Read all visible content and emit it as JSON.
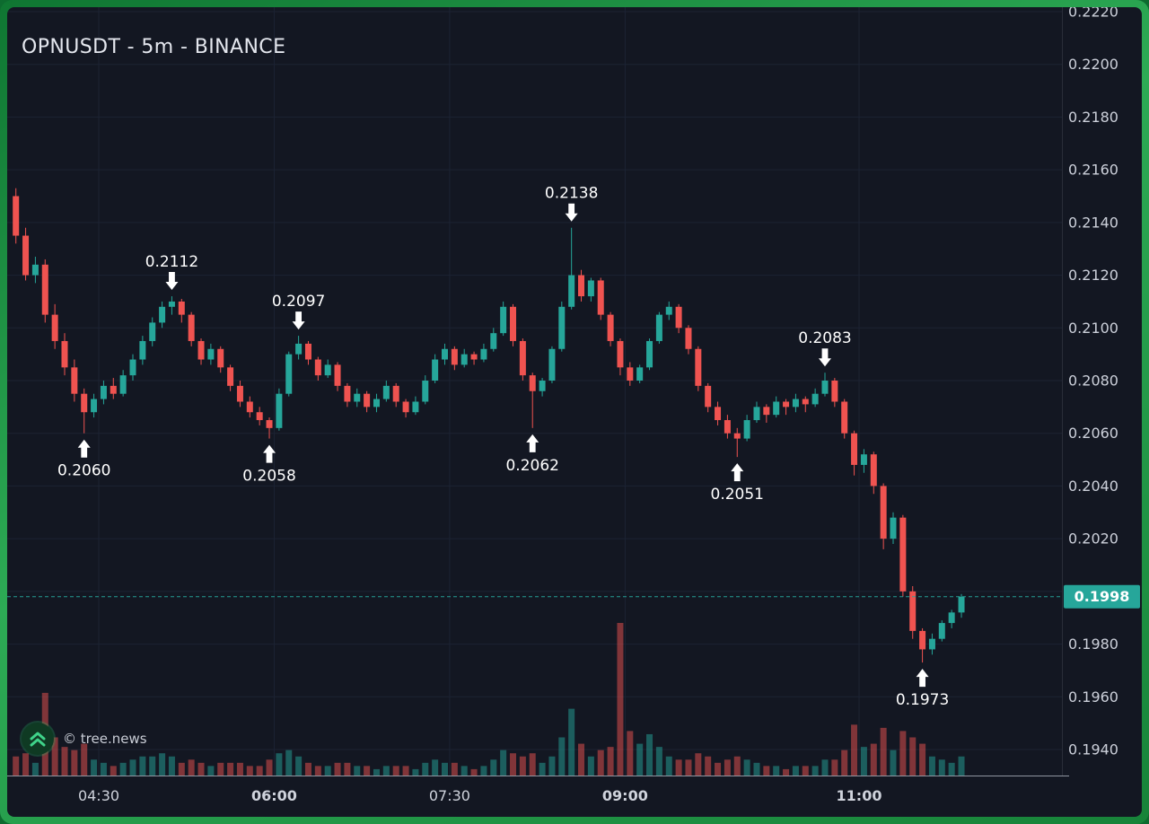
{
  "header": {
    "title": "OPNUSDT - 5m - BINANCE"
  },
  "watermark": {
    "label": "© tree.news",
    "icon": "double-chevron-up-icon"
  },
  "price_axis": {
    "ticks": [
      "0.2220",
      "0.2200",
      "0.2180",
      "0.2160",
      "0.2140",
      "0.2120",
      "0.2100",
      "0.2080",
      "0.2060",
      "0.2040",
      "0.2020",
      "0.1980",
      "0.1960",
      "0.1940"
    ],
    "last_price_label": "0.1998"
  },
  "time_axis": {
    "ticks": [
      {
        "label": "04:30",
        "bold": false
      },
      {
        "label": "06:00",
        "bold": true
      },
      {
        "label": "07:30",
        "bold": false
      },
      {
        "label": "09:00",
        "bold": true
      },
      {
        "label": "11:00",
        "bold": true
      }
    ]
  },
  "chart_data": {
    "type": "candlestick",
    "symbol": "OPNUSDT",
    "interval": "5m",
    "exchange": "BINANCE",
    "price_range": [
      0.194,
      0.222
    ],
    "price_step": 0.002,
    "last_price": 0.1998,
    "colors": {
      "up": "#26a69a",
      "down": "#ef5350",
      "accent": "#26a69a",
      "grid": "#1c2333"
    },
    "columns": [
      "time",
      "open",
      "high",
      "low",
      "close",
      "volume"
    ],
    "candles": [
      [
        "03:45",
        0.215,
        0.2153,
        0.2132,
        0.2135,
        6
      ],
      [
        "03:50",
        0.2135,
        0.2138,
        0.2118,
        0.212,
        7
      ],
      [
        "03:55",
        0.212,
        0.2127,
        0.2117,
        0.2124,
        4
      ],
      [
        "04:00",
        0.2124,
        0.2126,
        0.2102,
        0.2105,
        26
      ],
      [
        "04:05",
        0.2105,
        0.2109,
        0.2092,
        0.2095,
        12
      ],
      [
        "04:10",
        0.2095,
        0.2098,
        0.2082,
        0.2085,
        9
      ],
      [
        "04:15",
        0.2085,
        0.2088,
        0.2072,
        0.2075,
        8
      ],
      [
        "04:20",
        0.2075,
        0.2077,
        0.206,
        0.2068,
        10
      ],
      [
        "04:25",
        0.2068,
        0.2075,
        0.2066,
        0.2073,
        5
      ],
      [
        "04:30",
        0.2073,
        0.208,
        0.2071,
        0.2078,
        4
      ],
      [
        "04:35",
        0.2078,
        0.2081,
        0.2073,
        0.2075,
        3
      ],
      [
        "04:40",
        0.2075,
        0.2084,
        0.2074,
        0.2082,
        4
      ],
      [
        "04:45",
        0.2082,
        0.209,
        0.208,
        0.2088,
        5
      ],
      [
        "04:50",
        0.2088,
        0.2097,
        0.2086,
        0.2095,
        6
      ],
      [
        "04:55",
        0.2095,
        0.2104,
        0.2093,
        0.2102,
        6
      ],
      [
        "05:00",
        0.2102,
        0.211,
        0.21,
        0.2108,
        7
      ],
      [
        "05:05",
        0.2108,
        0.2112,
        0.2105,
        0.211,
        6
      ],
      [
        "05:10",
        0.211,
        0.2111,
        0.2102,
        0.2105,
        4
      ],
      [
        "05:15",
        0.2105,
        0.2106,
        0.2093,
        0.2095,
        5
      ],
      [
        "05:20",
        0.2095,
        0.2096,
        0.2086,
        0.2088,
        4
      ],
      [
        "05:25",
        0.2088,
        0.2094,
        0.2086,
        0.2092,
        3
      ],
      [
        "05:30",
        0.2092,
        0.2093,
        0.2083,
        0.2085,
        4
      ],
      [
        "05:35",
        0.2085,
        0.2086,
        0.2076,
        0.2078,
        4
      ],
      [
        "05:40",
        0.2078,
        0.208,
        0.207,
        0.2072,
        4
      ],
      [
        "05:45",
        0.2072,
        0.2074,
        0.2066,
        0.2068,
        3
      ],
      [
        "05:50",
        0.2068,
        0.207,
        0.2063,
        0.2065,
        3
      ],
      [
        "05:55",
        0.2065,
        0.2066,
        0.2058,
        0.2062,
        5
      ],
      [
        "06:00",
        0.2062,
        0.2077,
        0.2061,
        0.2075,
        7
      ],
      [
        "06:05",
        0.2075,
        0.2091,
        0.2074,
        0.209,
        8
      ],
      [
        "06:10",
        0.209,
        0.2097,
        0.2088,
        0.2094,
        6
      ],
      [
        "06:15",
        0.2094,
        0.2095,
        0.2086,
        0.2088,
        4
      ],
      [
        "06:20",
        0.2088,
        0.2089,
        0.208,
        0.2082,
        3
      ],
      [
        "06:25",
        0.2082,
        0.2088,
        0.2081,
        0.2086,
        3
      ],
      [
        "06:30",
        0.2086,
        0.2087,
        0.2076,
        0.2078,
        4
      ],
      [
        "06:35",
        0.2078,
        0.2079,
        0.207,
        0.2072,
        4
      ],
      [
        "06:40",
        0.2072,
        0.2077,
        0.207,
        0.2075,
        3
      ],
      [
        "06:45",
        0.2075,
        0.2076,
        0.2068,
        0.207,
        3
      ],
      [
        "06:50",
        0.207,
        0.2075,
        0.2068,
        0.2073,
        2
      ],
      [
        "06:55",
        0.2073,
        0.208,
        0.2072,
        0.2078,
        3
      ],
      [
        "07:00",
        0.2078,
        0.2079,
        0.207,
        0.2072,
        3
      ],
      [
        "07:05",
        0.2072,
        0.2073,
        0.2066,
        0.2068,
        3
      ],
      [
        "07:10",
        0.2068,
        0.2074,
        0.2067,
        0.2072,
        2
      ],
      [
        "07:15",
        0.2072,
        0.2082,
        0.2071,
        0.208,
        4
      ],
      [
        "07:20",
        0.208,
        0.209,
        0.2079,
        0.2088,
        5
      ],
      [
        "07:25",
        0.2088,
        0.2094,
        0.2086,
        0.2092,
        4
      ],
      [
        "07:30",
        0.2092,
        0.2093,
        0.2084,
        0.2086,
        4
      ],
      [
        "07:35",
        0.2086,
        0.2092,
        0.2085,
        0.209,
        3
      ],
      [
        "07:40",
        0.209,
        0.2091,
        0.2086,
        0.2088,
        2
      ],
      [
        "07:45",
        0.2088,
        0.2094,
        0.2087,
        0.2092,
        3
      ],
      [
        "07:50",
        0.2092,
        0.21,
        0.2091,
        0.2098,
        5
      ],
      [
        "07:55",
        0.2098,
        0.211,
        0.2097,
        0.2108,
        8
      ],
      [
        "08:00",
        0.2108,
        0.2109,
        0.2093,
        0.2095,
        7
      ],
      [
        "08:05",
        0.2095,
        0.2096,
        0.208,
        0.2082,
        6
      ],
      [
        "08:10",
        0.2082,
        0.2083,
        0.2062,
        0.2076,
        7
      ],
      [
        "08:15",
        0.2076,
        0.2081,
        0.2074,
        0.208,
        4
      ],
      [
        "08:20",
        0.208,
        0.2093,
        0.2079,
        0.2092,
        6
      ],
      [
        "08:25",
        0.2092,
        0.211,
        0.2091,
        0.2108,
        12
      ],
      [
        "08:30",
        0.2108,
        0.2138,
        0.2107,
        0.212,
        21
      ],
      [
        "08:35",
        0.212,
        0.2122,
        0.211,
        0.2112,
        10
      ],
      [
        "08:40",
        0.2112,
        0.2119,
        0.211,
        0.2118,
        6
      ],
      [
        "08:45",
        0.2118,
        0.2119,
        0.2103,
        0.2105,
        8
      ],
      [
        "08:50",
        0.2105,
        0.2106,
        0.2093,
        0.2095,
        9
      ],
      [
        "08:55",
        0.2095,
        0.2096,
        0.2082,
        0.2085,
        48
      ],
      [
        "09:00",
        0.2085,
        0.2087,
        0.2078,
        0.208,
        14
      ],
      [
        "09:05",
        0.208,
        0.2086,
        0.2079,
        0.2085,
        10
      ],
      [
        "09:10",
        0.2085,
        0.2096,
        0.2084,
        0.2095,
        13
      ],
      [
        "09:15",
        0.2095,
        0.2106,
        0.2094,
        0.2105,
        9
      ],
      [
        "09:20",
        0.2105,
        0.211,
        0.2103,
        0.2108,
        6
      ],
      [
        "09:25",
        0.2108,
        0.2109,
        0.2098,
        0.21,
        5
      ],
      [
        "09:30",
        0.21,
        0.2101,
        0.209,
        0.2092,
        5
      ],
      [
        "09:35",
        0.2092,
        0.2093,
        0.2076,
        0.2078,
        7
      ],
      [
        "09:40",
        0.2078,
        0.2079,
        0.2068,
        0.207,
        6
      ],
      [
        "09:45",
        0.207,
        0.2072,
        0.2063,
        0.2065,
        4
      ],
      [
        "09:50",
        0.2065,
        0.2067,
        0.2058,
        0.206,
        5
      ],
      [
        "09:55",
        0.206,
        0.2062,
        0.2051,
        0.2058,
        6
      ],
      [
        "10:00",
        0.2058,
        0.2067,
        0.2057,
        0.2065,
        5
      ],
      [
        "10:05",
        0.2065,
        0.2072,
        0.2064,
        0.207,
        4
      ],
      [
        "10:10",
        0.207,
        0.2071,
        0.2064,
        0.2067,
        3
      ],
      [
        "10:15",
        0.2067,
        0.2074,
        0.2066,
        0.2072,
        3
      ],
      [
        "10:20",
        0.2072,
        0.2073,
        0.2067,
        0.207,
        2
      ],
      [
        "10:25",
        0.207,
        0.2075,
        0.2068,
        0.2073,
        3
      ],
      [
        "10:30",
        0.2073,
        0.2074,
        0.2068,
        0.2071,
        3
      ],
      [
        "10:35",
        0.2071,
        0.2077,
        0.207,
        0.2075,
        3
      ],
      [
        "10:40",
        0.2075,
        0.2083,
        0.2074,
        0.208,
        5
      ],
      [
        "10:45",
        0.208,
        0.2081,
        0.207,
        0.2072,
        5
      ],
      [
        "10:50",
        0.2072,
        0.2073,
        0.2058,
        0.206,
        8
      ],
      [
        "10:55",
        0.206,
        0.2061,
        0.2044,
        0.2048,
        16
      ],
      [
        "11:00",
        0.2048,
        0.2054,
        0.2045,
        0.2052,
        9
      ],
      [
        "11:05",
        0.2052,
        0.2053,
        0.2037,
        0.204,
        10
      ],
      [
        "11:10",
        0.204,
        0.2041,
        0.2016,
        0.202,
        15
      ],
      [
        "11:15",
        0.202,
        0.203,
        0.2018,
        0.2028,
        8
      ],
      [
        "11:20",
        0.2028,
        0.2029,
        0.1998,
        0.2,
        14
      ],
      [
        "11:25",
        0.2,
        0.2002,
        0.1982,
        0.1985,
        12
      ],
      [
        "11:30",
        0.1985,
        0.1986,
        0.1973,
        0.1978,
        10
      ],
      [
        "11:35",
        0.1978,
        0.1984,
        0.1976,
        0.1982,
        6
      ],
      [
        "11:40",
        0.1982,
        0.1989,
        0.1981,
        0.1988,
        5
      ],
      [
        "11:45",
        0.1988,
        0.1993,
        0.1986,
        0.1992,
        4
      ],
      [
        "11:50",
        0.1992,
        0.1999,
        0.199,
        0.1998,
        6
      ]
    ],
    "annotations": [
      {
        "label": "0.2060",
        "direction": "up",
        "time": "04:20",
        "price": 0.206
      },
      {
        "label": "0.2112",
        "direction": "down",
        "time": "05:05",
        "price": 0.2112
      },
      {
        "label": "0.2097",
        "direction": "down",
        "time": "06:10",
        "price": 0.2097
      },
      {
        "label": "0.2058",
        "direction": "up",
        "time": "05:55",
        "price": 0.2058
      },
      {
        "label": "0.2062",
        "direction": "up",
        "time": "08:10",
        "price": 0.2062
      },
      {
        "label": "0.2138",
        "direction": "down",
        "time": "08:30",
        "price": 0.2138
      },
      {
        "label": "0.2051",
        "direction": "up",
        "time": "09:55",
        "price": 0.2051
      },
      {
        "label": "0.2083",
        "direction": "down",
        "time": "10:40",
        "price": 0.2083
      },
      {
        "label": "0.1973",
        "direction": "up",
        "time": "11:30",
        "price": 0.1973
      }
    ]
  }
}
